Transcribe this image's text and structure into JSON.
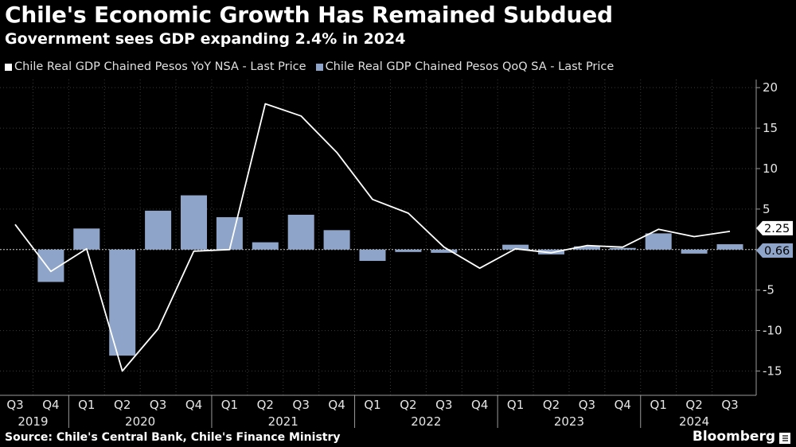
{
  "title": "Chile's Economic Growth Has Remained Subdued",
  "subtitle": "Government sees GDP expanding 2.4% in 2024",
  "source": "Source: Chile's Central Bank, Chile's Finance Ministry",
  "brand": "Bloomberg",
  "colors": {
    "line": "#ffffff",
    "bar": "#8ea4c8",
    "grid": "#3a3a3a",
    "axis": "#9a9a9a",
    "background": "#000000"
  },
  "chart_data": {
    "type": "bar+line",
    "categories": [
      "Q3",
      "Q4",
      "Q1",
      "Q2",
      "Q3",
      "Q4",
      "Q1",
      "Q2",
      "Q3",
      "Q4",
      "Q1",
      "Q2",
      "Q3",
      "Q4",
      "Q1",
      "Q2",
      "Q3",
      "Q4",
      "Q1",
      "Q2",
      "Q3"
    ],
    "years": [
      {
        "label": "2019",
        "start": 0,
        "end": 1
      },
      {
        "label": "2020",
        "start": 2,
        "end": 5
      },
      {
        "label": "2021",
        "start": 6,
        "end": 9
      },
      {
        "label": "2022",
        "start": 10,
        "end": 13
      },
      {
        "label": "2023",
        "start": 14,
        "end": 17
      },
      {
        "label": "2024",
        "start": 18,
        "end": 20
      }
    ],
    "series": [
      {
        "name": "Chile Real GDP Chained Pesos YoY NSA - Last Price",
        "kind": "line",
        "values": [
          3.1,
          -2.7,
          0.1,
          -15.0,
          -9.8,
          -0.2,
          0.0,
          18.0,
          16.5,
          12.0,
          6.2,
          4.5,
          0.3,
          -2.3,
          0.1,
          -0.4,
          0.5,
          0.3,
          2.5,
          1.6,
          2.25
        ]
      },
      {
        "name": "Chile Real GDP Chained Pesos QoQ SA - Last Price",
        "kind": "bar",
        "values": [
          0.0,
          -4.0,
          2.6,
          -13.1,
          4.8,
          6.7,
          4.0,
          0.9,
          4.3,
          2.4,
          -1.4,
          -0.3,
          -0.4,
          0.0,
          0.6,
          -0.6,
          0.4,
          0.2,
          2.0,
          -0.5,
          0.66
        ]
      }
    ],
    "last_value_labels": [
      "2.25",
      "0.66"
    ],
    "ylim": [
      -18,
      21
    ],
    "yticks": [
      -15,
      -10,
      -5,
      0,
      5,
      10,
      15,
      20
    ],
    "ytick_labels": [
      "-15",
      "-10",
      "-5",
      "0",
      "5",
      "10",
      "15",
      "20"
    ],
    "xlabel": "",
    "ylabel": "",
    "grid": true,
    "legend_position": "top-left"
  }
}
